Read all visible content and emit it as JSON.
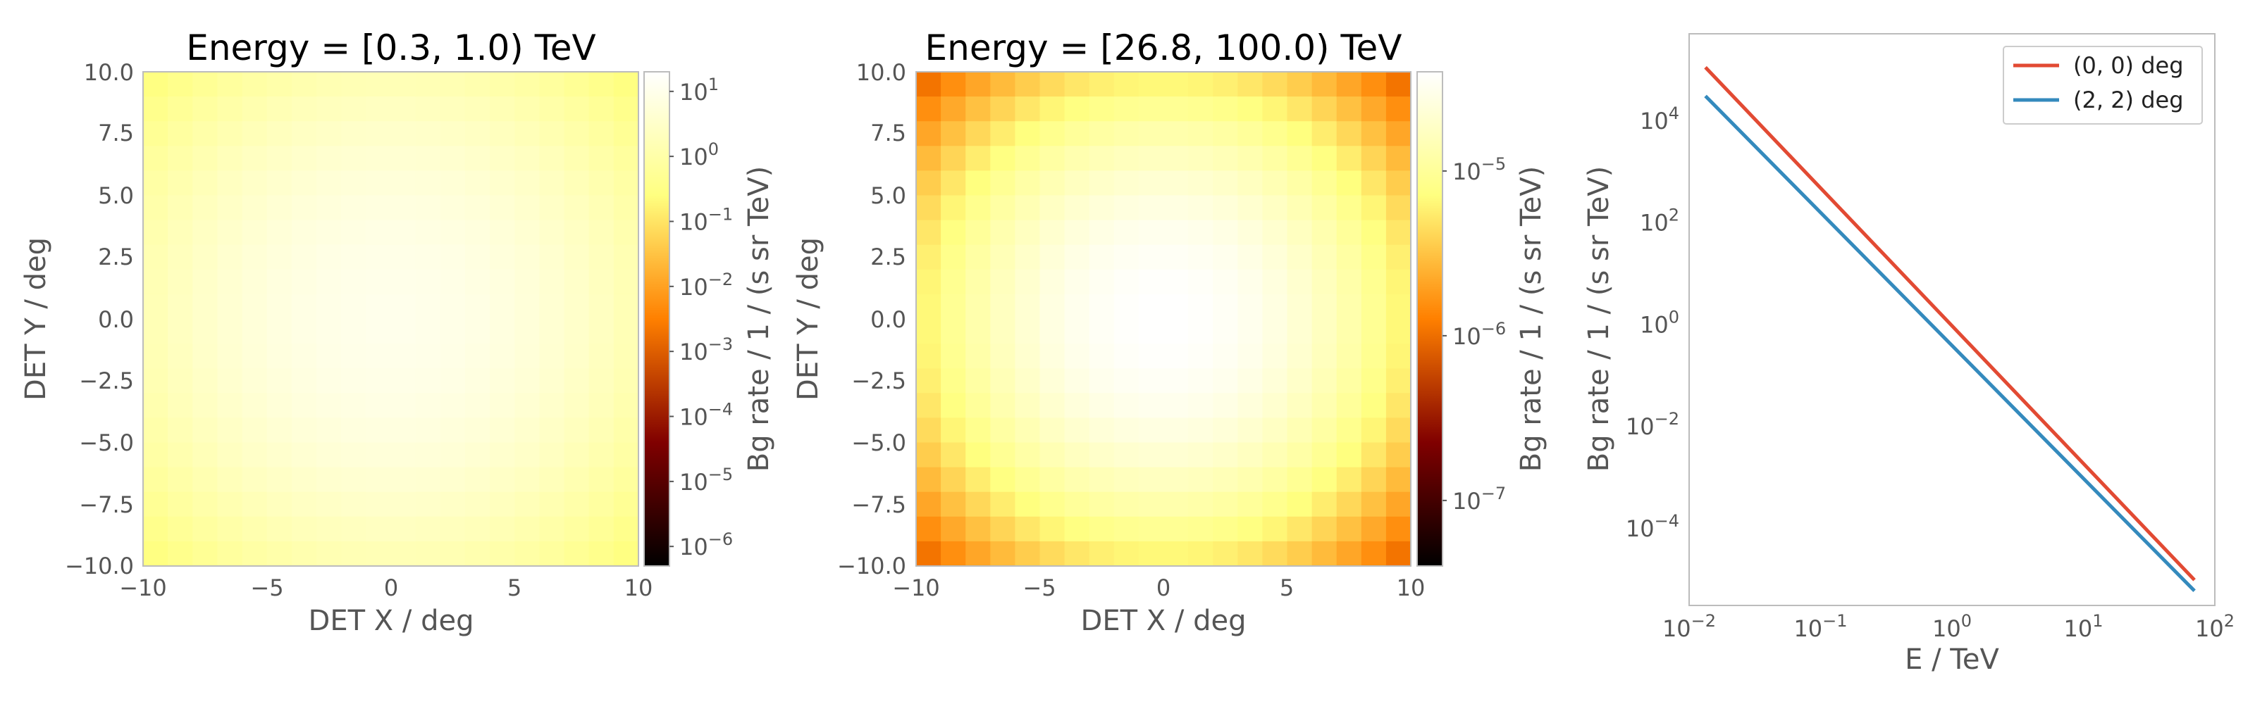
{
  "chart_data": [
    {
      "type": "heatmap",
      "title": "Energy = [0.3, 1.0) TeV",
      "xlabel": "DET X / deg",
      "ylabel": "DET Y / deg",
      "xlim": [
        -10,
        10
      ],
      "ylim": [
        -10,
        10
      ],
      "xticks": [
        "−10",
        "−5",
        "0",
        "5",
        "10"
      ],
      "yticks": [
        "10.0",
        "7.5",
        "5.0",
        "2.5",
        "0.0",
        "−2.5",
        "−5.0",
        "−7.5",
        "−10.0"
      ],
      "grid_bins": 20,
      "value_model": {
        "center": 10,
        "sigma_deg": 5,
        "floor": 5e-07
      },
      "colormap": "afmhot",
      "colorbar": {
        "label": "Bg rate / 1 / (s sr TeV)",
        "scale": "log",
        "range": [
          5e-07,
          20
        ],
        "ticks": [
          {
            "base": "10",
            "exp": "1",
            "value": 10
          },
          {
            "base": "10",
            "exp": "0",
            "value": 1
          },
          {
            "base": "10",
            "exp": "−1",
            "value": 0.1
          },
          {
            "base": "10",
            "exp": "−2",
            "value": 0.01
          },
          {
            "base": "10",
            "exp": "−3",
            "value": 0.001
          },
          {
            "base": "10",
            "exp": "−4",
            "value": 0.0001
          },
          {
            "base": "10",
            "exp": "−5",
            "value": 1e-05
          },
          {
            "base": "10",
            "exp": "−6",
            "value": 1e-06
          }
        ]
      }
    },
    {
      "type": "heatmap",
      "title": "Energy = [26.8, 100.0) TeV",
      "xlabel": "DET X / deg",
      "ylabel": "DET Y / deg",
      "xlim": [
        -10,
        10
      ],
      "ylim": [
        -10,
        10
      ],
      "xticks": [
        "−10",
        "−5",
        "0",
        "5",
        "10"
      ],
      "yticks": [
        "10.0",
        "7.5",
        "5.0",
        "2.5",
        "0.0",
        "−2.5",
        "−5.0",
        "−7.5",
        "−10.0"
      ],
      "grid_bins": 20,
      "value_model": {
        "center": 4e-05,
        "sigma_deg": 5,
        "floor": 4e-08
      },
      "colormap": "afmhot",
      "colorbar": {
        "label": "Bg rate / 1 / (s sr TeV)",
        "scale": "log",
        "range": [
          4e-08,
          4e-05
        ],
        "ticks": [
          {
            "base": "10",
            "exp": "−5",
            "value": 1e-05
          },
          {
            "base": "10",
            "exp": "−6",
            "value": 1e-06
          },
          {
            "base": "10",
            "exp": "−7",
            "value": 1e-07
          }
        ]
      }
    },
    {
      "type": "line",
      "title": "",
      "xlabel": "E / TeV",
      "ylabel": "Bg rate / 1 / (s sr TeV)",
      "xscale": "log",
      "yscale": "log",
      "xlim": [
        0.01,
        100
      ],
      "ylim": [
        3e-06,
        500000.0
      ],
      "grid": false,
      "legend_position": "top-right",
      "xticks": [
        {
          "base": "10",
          "exp": "−2",
          "value": 0.01
        },
        {
          "base": "10",
          "exp": "−1",
          "value": 0.1
        },
        {
          "base": "10",
          "exp": "0",
          "value": 1
        },
        {
          "base": "10",
          "exp": "1",
          "value": 10
        },
        {
          "base": "10",
          "exp": "2",
          "value": 100
        }
      ],
      "yticks": [
        {
          "base": "10",
          "exp": "4",
          "value": 10000
        },
        {
          "base": "10",
          "exp": "2",
          "value": 100
        },
        {
          "base": "10",
          "exp": "0",
          "value": 1
        },
        {
          "base": "10",
          "exp": "−2",
          "value": 0.01
        },
        {
          "base": "10",
          "exp": "−4",
          "value": 0.0001
        }
      ],
      "series": [
        {
          "name": "(0, 0) deg",
          "color": "#E24A33",
          "x": [
            0.0133,
            70
          ],
          "y": [
            110000,
            9.5e-06
          ]
        },
        {
          "name": "(2, 2) deg",
          "color": "#348ABD",
          "x": [
            0.0133,
            70
          ],
          "y": [
            30000,
            5.8e-06
          ]
        }
      ]
    }
  ]
}
